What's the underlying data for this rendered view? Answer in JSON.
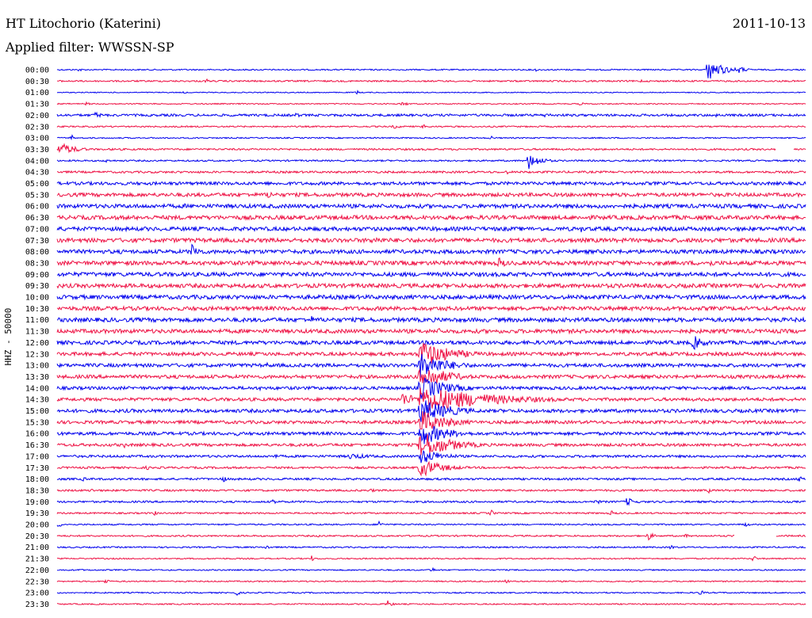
{
  "header": {
    "station": "HT Litochorio (Katerini)",
    "filter": "Applied filter: WWSSN-SP",
    "date": "2011-10-13"
  },
  "colors": {
    "trace_even": "#0000ee",
    "trace_odd": "#ee1144",
    "text": "#000000",
    "background": "#ffffff"
  },
  "chart_data": {
    "type": "helicorder",
    "ylabel": "HHZ - 50000",
    "rows": [
      {
        "time": "00:00",
        "noise": 0.8,
        "events": [
          {
            "t": 0.03,
            "amp": 4,
            "dur": 0.002
          },
          {
            "t": 0.64,
            "amp": 4,
            "dur": 0.002
          },
          {
            "t": 0.869,
            "amp": 14,
            "dur": 0.02
          },
          {
            "t": 0.91,
            "amp": 5,
            "dur": 0.01
          }
        ]
      },
      {
        "time": "00:30",
        "noise": 1.0,
        "events": [
          {
            "t": 0.2,
            "amp": 3,
            "dur": 0.003
          },
          {
            "t": 0.78,
            "amp": 3,
            "dur": 0.004
          }
        ]
      },
      {
        "time": "01:00",
        "noise": 0.6,
        "events": [
          {
            "t": 0.17,
            "amp": 2,
            "dur": 0.003
          },
          {
            "t": 0.4,
            "amp": 4,
            "dur": 0.002
          }
        ]
      },
      {
        "time": "01:30",
        "noise": 0.7,
        "events": [
          {
            "t": 0.04,
            "amp": 4,
            "dur": 0.002
          },
          {
            "t": 0.46,
            "amp": 3,
            "dur": 0.01
          },
          {
            "t": 0.7,
            "amp": 4,
            "dur": 0.002
          }
        ]
      },
      {
        "time": "02:00",
        "noise": 1.5,
        "events": [
          {
            "t": 0.05,
            "amp": 4,
            "dur": 0.015
          },
          {
            "t": 0.32,
            "amp": 5,
            "dur": 0.003
          },
          {
            "t": 0.65,
            "amp": 3,
            "dur": 0.02
          },
          {
            "t": 0.88,
            "amp": 4,
            "dur": 0.003
          }
        ]
      },
      {
        "time": "02:30",
        "noise": 0.9,
        "events": [
          {
            "t": 0.45,
            "amp": 3,
            "dur": 0.01
          },
          {
            "t": 0.49,
            "amp": 4,
            "dur": 0.003
          }
        ]
      },
      {
        "time": "03:00",
        "noise": 0.8,
        "events": [
          {
            "t": 0.02,
            "amp": 4,
            "dur": 0.002
          },
          {
            "t": 0.58,
            "amp": 4,
            "dur": 0.002
          }
        ]
      },
      {
        "time": "03:30",
        "noise": 1.1,
        "gap": [
          0.96,
          0.984
        ],
        "events": [
          {
            "t": 0.003,
            "amp": 9,
            "dur": 0.02
          },
          {
            "t": 0.075,
            "amp": 3,
            "dur": 0.003
          }
        ]
      },
      {
        "time": "04:00",
        "noise": 1.0,
        "events": [
          {
            "t": 0.065,
            "amp": 5,
            "dur": 0.003
          },
          {
            "t": 0.63,
            "amp": 11,
            "dur": 0.015
          },
          {
            "t": 0.99,
            "amp": 4,
            "dur": 0.002
          }
        ]
      },
      {
        "time": "04:30",
        "noise": 1.3,
        "events": [
          {
            "t": 0.6,
            "amp": 4,
            "dur": 0.003
          }
        ]
      },
      {
        "time": "05:00",
        "noise": 2.0,
        "events": [
          {
            "t": 0.17,
            "amp": 4,
            "dur": 0.003
          },
          {
            "t": 0.52,
            "amp": 4,
            "dur": 0.003
          }
        ]
      },
      {
        "time": "05:30",
        "noise": 2.3,
        "events": [
          {
            "t": 0.28,
            "amp": 6,
            "dur": 0.012
          },
          {
            "t": 0.37,
            "amp": 4,
            "dur": 0.003
          }
        ]
      },
      {
        "time": "06:00",
        "noise": 2.5,
        "events": [
          {
            "t": 0.17,
            "amp": 4,
            "dur": 0.003
          },
          {
            "t": 0.75,
            "amp": 4,
            "dur": 0.003
          }
        ]
      },
      {
        "time": "06:30",
        "noise": 2.6,
        "events": [
          {
            "t": 0.33,
            "amp": 4,
            "dur": 0.003
          }
        ]
      },
      {
        "time": "07:00",
        "noise": 2.5,
        "events": [
          {
            "t": 0.7,
            "amp": 5,
            "dur": 0.003
          }
        ]
      },
      {
        "time": "07:30",
        "noise": 2.6,
        "events": [
          {
            "t": 0.42,
            "amp": 5,
            "dur": 0.03
          }
        ]
      },
      {
        "time": "08:00",
        "noise": 2.5,
        "events": [
          {
            "t": 0.18,
            "amp": 10,
            "dur": 0.012
          },
          {
            "t": 0.79,
            "amp": 4,
            "dur": 0.003
          }
        ]
      },
      {
        "time": "08:30",
        "noise": 2.6,
        "events": [
          {
            "t": 0.59,
            "amp": 8,
            "dur": 0.01
          },
          {
            "t": 0.87,
            "amp": 7,
            "dur": 0.008
          }
        ]
      },
      {
        "time": "09:00",
        "noise": 2.6,
        "events": [
          {
            "t": 0.6,
            "amp": 5,
            "dur": 0.003
          }
        ]
      },
      {
        "time": "09:30",
        "noise": 2.6,
        "events": [
          {
            "t": 0.12,
            "amp": 4,
            "dur": 0.003
          }
        ]
      },
      {
        "time": "10:00",
        "noise": 2.6,
        "events": [
          {
            "t": 0.33,
            "amp": 4,
            "dur": 0.003
          }
        ]
      },
      {
        "time": "10:30",
        "noise": 2.5,
        "events": [
          {
            "t": 0.18,
            "amp": 4,
            "dur": 0.003
          },
          {
            "t": 0.52,
            "amp": 4,
            "dur": 0.003
          }
        ]
      },
      {
        "time": "11:00",
        "noise": 2.6,
        "events": [
          {
            "t": 0.34,
            "amp": 5,
            "dur": 0.006
          }
        ]
      },
      {
        "time": "11:30",
        "noise": 2.5,
        "events": [
          {
            "t": 0.41,
            "amp": 3,
            "dur": 0.03
          },
          {
            "t": 0.51,
            "amp": 6,
            "dur": 0.003
          }
        ]
      },
      {
        "time": "12:00",
        "noise": 2.4,
        "events": [
          {
            "t": 0.3,
            "amp": 4,
            "dur": 0.003
          },
          {
            "t": 0.5,
            "amp": 8,
            "dur": 0.003
          },
          {
            "t": 0.85,
            "amp": 10,
            "dur": 0.015
          }
        ]
      },
      {
        "time": "12:30",
        "noise": 2.2,
        "events": [
          {
            "t": 0.06,
            "amp": 4,
            "dur": 0.003
          },
          {
            "t": 0.485,
            "amp": 18,
            "dur": 0.04
          }
        ]
      },
      {
        "time": "13:00",
        "noise": 2.2,
        "events": [
          {
            "t": 0.28,
            "amp": 4,
            "dur": 0.003
          },
          {
            "t": 0.485,
            "amp": 17,
            "dur": 0.035
          }
        ]
      },
      {
        "time": "13:30",
        "noise": 2.2,
        "events": [
          {
            "t": 0.485,
            "amp": 17,
            "dur": 0.035
          },
          {
            "t": 0.73,
            "amp": 4,
            "dur": 0.003
          }
        ]
      },
      {
        "time": "14:00",
        "noise": 2.0,
        "events": [
          {
            "t": 0.27,
            "amp": 4,
            "dur": 0.003
          },
          {
            "t": 0.485,
            "amp": 16,
            "dur": 0.035
          }
        ]
      },
      {
        "time": "14:30",
        "noise": 2.0,
        "events": [
          {
            "t": 0.46,
            "amp": 10,
            "dur": 0.02
          },
          {
            "t": 0.485,
            "amp": 18,
            "dur": 0.09
          }
        ]
      },
      {
        "time": "15:00",
        "noise": 2.2,
        "events": [
          {
            "t": 0.24,
            "amp": 4,
            "dur": 0.003
          },
          {
            "t": 0.485,
            "amp": 16,
            "dur": 0.04
          }
        ]
      },
      {
        "time": "15:30",
        "noise": 2.0,
        "events": [
          {
            "t": 0.485,
            "amp": 16,
            "dur": 0.035
          }
        ]
      },
      {
        "time": "16:00",
        "noise": 2.0,
        "events": [
          {
            "t": 0.24,
            "amp": 4,
            "dur": 0.003
          },
          {
            "t": 0.485,
            "amp": 16,
            "dur": 0.035
          }
        ]
      },
      {
        "time": "16:30",
        "noise": 1.8,
        "events": [
          {
            "t": 0.09,
            "amp": 4,
            "dur": 0.003
          },
          {
            "t": 0.485,
            "amp": 18,
            "dur": 0.04
          }
        ]
      },
      {
        "time": "17:00",
        "noise": 1.5,
        "events": [
          {
            "t": 0.29,
            "amp": 5,
            "dur": 0.003
          },
          {
            "t": 0.39,
            "amp": 4,
            "dur": 0.04
          },
          {
            "t": 0.485,
            "amp": 10,
            "dur": 0.03
          }
        ]
      },
      {
        "time": "17:30",
        "noise": 1.3,
        "events": [
          {
            "t": 0.12,
            "amp": 4,
            "dur": 0.003
          },
          {
            "t": 0.485,
            "amp": 12,
            "dur": 0.03
          }
        ]
      },
      {
        "time": "18:00",
        "noise": 1.3,
        "events": [
          {
            "t": 0.035,
            "amp": 5,
            "dur": 0.003
          },
          {
            "t": 0.22,
            "amp": 7,
            "dur": 0.004
          },
          {
            "t": 0.99,
            "amp": 6,
            "dur": 0.004
          }
        ]
      },
      {
        "time": "18:30",
        "noise": 1.2,
        "events": [
          {
            "t": 0.045,
            "amp": 4,
            "dur": 0.003
          },
          {
            "t": 0.42,
            "amp": 4,
            "dur": 0.003
          },
          {
            "t": 0.87,
            "amp": 4,
            "dur": 0.003
          }
        ]
      },
      {
        "time": "19:00",
        "noise": 1.2,
        "events": [
          {
            "t": 0.29,
            "amp": 5,
            "dur": 0.003
          },
          {
            "t": 0.72,
            "amp": 5,
            "dur": 0.004
          },
          {
            "t": 0.76,
            "amp": 6,
            "dur": 0.012
          }
        ]
      },
      {
        "time": "19:30",
        "noise": 1.0,
        "events": [
          {
            "t": 0.13,
            "amp": 4,
            "dur": 0.003
          },
          {
            "t": 0.58,
            "amp": 5,
            "dur": 0.003
          },
          {
            "t": 0.74,
            "amp": 4,
            "dur": 0.005
          }
        ]
      },
      {
        "time": "20:00",
        "noise": 0.9,
        "events": [
          {
            "t": 0.002,
            "amp": 5,
            "dur": 0.003
          },
          {
            "t": 0.43,
            "amp": 6,
            "dur": 0.003
          },
          {
            "t": 0.92,
            "amp": 5,
            "dur": 0.003
          }
        ]
      },
      {
        "time": "20:30",
        "noise": 1.0,
        "gap": [
          0.905,
          0.96
        ],
        "events": [
          {
            "t": 0.35,
            "amp": 3,
            "dur": 0.003
          },
          {
            "t": 0.79,
            "amp": 6,
            "dur": 0.006
          },
          {
            "t": 0.84,
            "amp": 4,
            "dur": 0.003
          }
        ]
      },
      {
        "time": "21:00",
        "noise": 0.9,
        "events": [
          {
            "t": 0.28,
            "amp": 5,
            "dur": 0.003
          },
          {
            "t": 0.82,
            "amp": 5,
            "dur": 0.003
          }
        ]
      },
      {
        "time": "21:30",
        "noise": 0.8,
        "events": [
          {
            "t": 0.34,
            "amp": 4,
            "dur": 0.003
          },
          {
            "t": 0.93,
            "amp": 6,
            "dur": 0.003
          }
        ]
      },
      {
        "time": "22:00",
        "noise": 0.8,
        "events": [
          {
            "t": 0.03,
            "amp": 3,
            "dur": 0.003
          },
          {
            "t": 0.5,
            "amp": 5,
            "dur": 0.003
          }
        ]
      },
      {
        "time": "22:30",
        "noise": 0.8,
        "events": [
          {
            "t": 0.065,
            "amp": 5,
            "dur": 0.003
          },
          {
            "t": 0.6,
            "amp": 4,
            "dur": 0.003
          }
        ]
      },
      {
        "time": "23:00",
        "noise": 0.8,
        "events": [
          {
            "t": 0.24,
            "amp": 5,
            "dur": 0.003
          },
          {
            "t": 0.86,
            "amp": 5,
            "dur": 0.003
          }
        ]
      },
      {
        "time": "23:30",
        "noise": 0.8,
        "events": [
          {
            "t": 0.44,
            "amp": 6,
            "dur": 0.006
          }
        ]
      }
    ]
  }
}
